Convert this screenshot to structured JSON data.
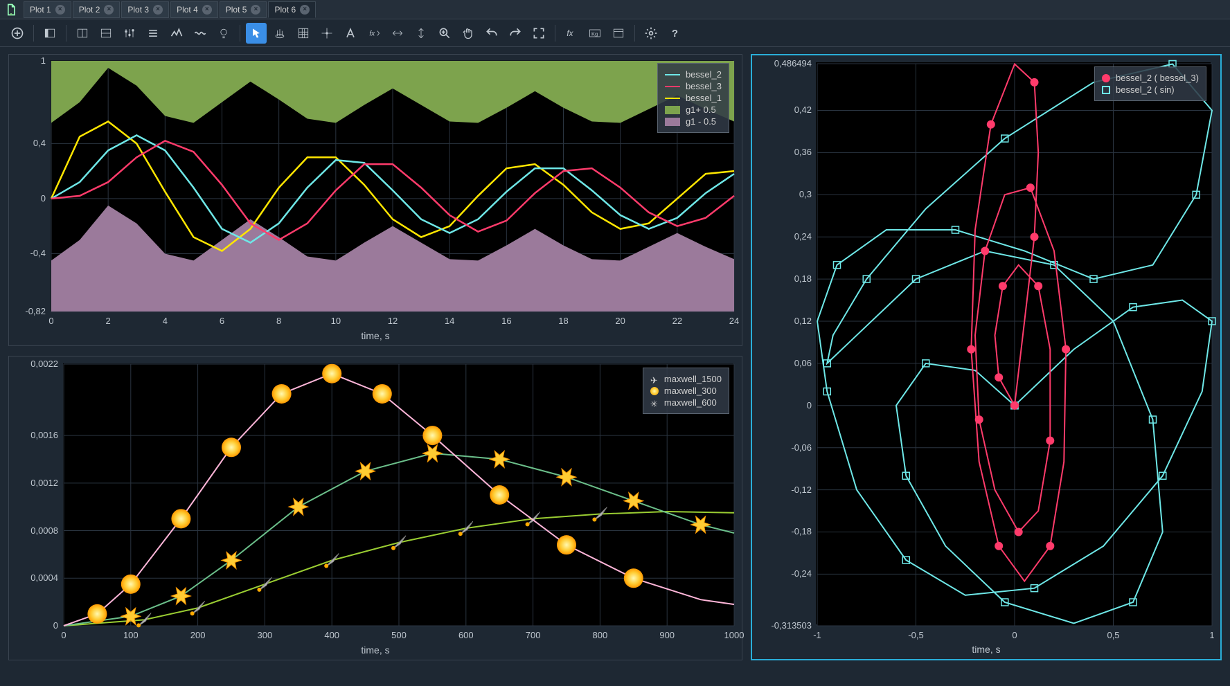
{
  "tabs": [
    {
      "label": "Plot 1",
      "active": false
    },
    {
      "label": "Plot 2",
      "active": false
    },
    {
      "label": "Plot 3",
      "active": false
    },
    {
      "label": "Plot 4",
      "active": false
    },
    {
      "label": "Plot 5",
      "active": false
    },
    {
      "label": "Plot 6",
      "active": true
    }
  ],
  "toolbar": [
    {
      "name": "add",
      "glyph": "plus",
      "selected": false
    },
    {
      "name": "sep"
    },
    {
      "name": "panel-l",
      "glyph": "panelL"
    },
    {
      "name": "sep"
    },
    {
      "name": "layout1",
      "glyph": "layoutA"
    },
    {
      "name": "layout2",
      "glyph": "layoutB"
    },
    {
      "name": "sliders",
      "glyph": "sliders"
    },
    {
      "name": "list",
      "glyph": "list"
    },
    {
      "name": "chart-line",
      "glyph": "zigzag"
    },
    {
      "name": "chart-wave",
      "glyph": "wave"
    },
    {
      "name": "bulb",
      "glyph": "bulb"
    },
    {
      "name": "sep"
    },
    {
      "name": "cursor",
      "glyph": "cursor",
      "selected": true
    },
    {
      "name": "brush",
      "glyph": "brush"
    },
    {
      "name": "grid",
      "glyph": "grid"
    },
    {
      "name": "crosshair",
      "glyph": "crosshair"
    },
    {
      "name": "text",
      "glyph": "textA"
    },
    {
      "name": "fx-caret",
      "glyph": "fxc"
    },
    {
      "name": "arrows-h",
      "glyph": "arrh"
    },
    {
      "name": "arrows-v",
      "glyph": "arrv"
    },
    {
      "name": "zoom",
      "glyph": "zoom"
    },
    {
      "name": "pan",
      "glyph": "hand"
    },
    {
      "name": "undo",
      "glyph": "undo"
    },
    {
      "name": "redo",
      "glyph": "redo"
    },
    {
      "name": "fullscreen",
      "glyph": "fs"
    },
    {
      "name": "sep"
    },
    {
      "name": "fx",
      "glyph": "fx"
    },
    {
      "name": "kg",
      "glyph": "kg"
    },
    {
      "name": "window",
      "glyph": "win"
    },
    {
      "name": "sep"
    },
    {
      "name": "settings",
      "glyph": "gear"
    },
    {
      "name": "help",
      "glyph": "help"
    }
  ],
  "plot1": {
    "xlabel": "time, s",
    "xlim": [
      0,
      24
    ],
    "xticks": [
      0,
      2,
      4,
      6,
      8,
      10,
      12,
      14,
      16,
      18,
      20,
      22,
      24
    ],
    "ylim": [
      -0.82,
      1
    ],
    "yticks": [
      -0.82,
      -0.4,
      0,
      0.4,
      1
    ],
    "ytick_labels": [
      "-0,82",
      "-0,4",
      "0",
      "0,4",
      "1"
    ],
    "grid_color": "#2a3440",
    "bg": "#000000",
    "legend": [
      {
        "label": "bessel_2",
        "color": "#6ee7e7",
        "type": "line"
      },
      {
        "label": "bessel_3",
        "color": "#ff3b6b",
        "type": "line"
      },
      {
        "label": "bessel_1",
        "color": "#ffe600",
        "type": "line"
      },
      {
        "label": "g1+ 0.5",
        "color": "#7da34d",
        "type": "area"
      },
      {
        "label": "g1 - 0.5",
        "color": "#9b7a9b",
        "type": "area"
      }
    ],
    "area_top": {
      "color": "#7da34d",
      "base": 1.0,
      "amp": 0.28,
      "y": [
        0.55,
        0.7,
        0.95,
        0.82,
        0.6,
        0.55,
        0.7,
        0.85,
        0.72,
        0.58,
        0.55,
        0.68,
        0.8,
        0.68,
        0.56,
        0.55,
        0.66,
        0.78,
        0.66,
        0.56,
        0.55,
        0.65,
        0.75,
        0.65,
        0.56
      ]
    },
    "area_bot": {
      "color": "#9b7a9b",
      "base": -0.82,
      "amp": 0.28,
      "y": [
        -0.45,
        -0.3,
        -0.05,
        -0.18,
        -0.4,
        -0.45,
        -0.3,
        -0.15,
        -0.28,
        -0.42,
        -0.45,
        -0.32,
        -0.2,
        -0.32,
        -0.44,
        -0.45,
        -0.34,
        -0.22,
        -0.34,
        -0.44,
        -0.45,
        -0.35,
        -0.25,
        -0.35,
        -0.44
      ]
    },
    "bessel_1": {
      "color": "#ffe600",
      "width": 2.5,
      "y": [
        0.0,
        0.45,
        0.56,
        0.4,
        0.05,
        -0.28,
        -0.38,
        -0.22,
        0.08,
        0.3,
        0.3,
        0.1,
        -0.15,
        -0.28,
        -0.2,
        0.02,
        0.22,
        0.25,
        0.1,
        -0.1,
        -0.22,
        -0.18,
        0.0,
        0.18,
        0.2
      ]
    },
    "bessel_2": {
      "color": "#6ee7e7",
      "width": 2.5,
      "y": [
        0.0,
        0.12,
        0.35,
        0.46,
        0.35,
        0.08,
        -0.22,
        -0.32,
        -0.18,
        0.08,
        0.28,
        0.26,
        0.06,
        -0.15,
        -0.25,
        -0.15,
        0.05,
        0.22,
        0.22,
        0.06,
        -0.12,
        -0.22,
        -0.14,
        0.04,
        0.18
      ]
    },
    "bessel_3": {
      "color": "#ff3b6b",
      "width": 2.5,
      "y": [
        0.0,
        0.02,
        0.12,
        0.3,
        0.42,
        0.34,
        0.1,
        -0.18,
        -0.3,
        -0.18,
        0.06,
        0.25,
        0.25,
        0.08,
        -0.12,
        -0.24,
        -0.16,
        0.04,
        0.2,
        0.22,
        0.08,
        -0.1,
        -0.2,
        -0.14,
        0.02
      ]
    }
  },
  "plot2": {
    "xlabel": "time, s",
    "xlim": [
      0,
      1000
    ],
    "xticks": [
      0,
      100,
      200,
      300,
      400,
      500,
      600,
      700,
      800,
      900,
      1000
    ],
    "ylim": [
      0,
      0.0022
    ],
    "yticks": [
      0,
      0.0004,
      0.0008,
      0.0012,
      0.0016,
      0.0022
    ],
    "ytick_labels": [
      "0",
      "0,0004",
      "0,0008",
      "0,0012",
      "0,0016",
      "0,0022"
    ],
    "grid_color": "#2a3440",
    "bg": "#000000",
    "legend": [
      {
        "label": "maxwell_1500",
        "color": "#9acd32",
        "marker": "rocket"
      },
      {
        "label": "maxwell_300",
        "color": "#ffb6d9",
        "marker": "sun"
      },
      {
        "label": "maxwell_600",
        "color": "#6bbf8a",
        "marker": "star"
      }
    ],
    "maxwell_1500": {
      "color": "#9acd32",
      "x": [
        0,
        120,
        200,
        300,
        400,
        500,
        600,
        700,
        800,
        900,
        1000
      ],
      "y": [
        0,
        5e-05,
        0.00015,
        0.00035,
        0.00055,
        0.0007,
        0.00082,
        0.0009,
        0.00094,
        0.00096,
        0.00095
      ],
      "markers": [
        120,
        200,
        300,
        400,
        500,
        600,
        700,
        800
      ]
    },
    "maxwell_300": {
      "color": "#ffb6d9",
      "x": [
        0,
        50,
        100,
        175,
        250,
        325,
        400,
        475,
        550,
        650,
        750,
        850,
        950,
        1000
      ],
      "y": [
        0,
        0.0001,
        0.00035,
        0.0009,
        0.0015,
        0.00195,
        0.00212,
        0.00195,
        0.0016,
        0.0011,
        0.00068,
        0.0004,
        0.00022,
        0.00018
      ],
      "markers": [
        50,
        100,
        175,
        250,
        325,
        400,
        475,
        550,
        650,
        750,
        850
      ]
    },
    "maxwell_600": {
      "color": "#6bbf8a",
      "x": [
        0,
        100,
        175,
        250,
        350,
        450,
        550,
        650,
        750,
        850,
        950,
        1000
      ],
      "y": [
        0,
        8e-05,
        0.00025,
        0.00055,
        0.001,
        0.0013,
        0.00145,
        0.0014,
        0.00125,
        0.00105,
        0.00085,
        0.00078
      ],
      "markers": [
        100,
        175,
        250,
        350,
        450,
        550,
        650,
        750,
        850,
        950
      ]
    }
  },
  "plot3": {
    "xlabel": "time, s",
    "xlim": [
      -1,
      1
    ],
    "xticks": [
      -1,
      -0.5,
      0,
      0.5,
      1
    ],
    "xtick_labels": [
      "-1",
      "-0,5",
      "0",
      "0,5",
      "1"
    ],
    "ylim": [
      -0.313503,
      0.486494
    ],
    "yticks": [
      -0.313503,
      -0.24,
      -0.18,
      -0.12,
      -0.06,
      0,
      0.06,
      0.12,
      0.18,
      0.24,
      0.3,
      0.36,
      0.42,
      0.486494
    ],
    "ytick_labels": [
      "-0,313503",
      "-0,24",
      "-0,18",
      "-0,12",
      "-0,06",
      "0",
      "0,06",
      "0,12",
      "0,18",
      "0,24",
      "0,3",
      "0,36",
      "0,42",
      "0,486494"
    ],
    "grid_color": "#2a3440",
    "bg": "#000000",
    "legend": [
      {
        "label": "bessel_2 ( bessel_3)",
        "color": "#ff3b6b",
        "marker": "circle"
      },
      {
        "label": "bessel_2 ( sin)",
        "color": "#6ee7e7",
        "marker": "square"
      }
    ],
    "series_red": {
      "color": "#ff3b6b",
      "pts": [
        [
          0,
          0
        ],
        [
          0.05,
          0.12
        ],
        [
          0.1,
          0.24
        ],
        [
          0.12,
          0.36
        ],
        [
          0.1,
          0.46
        ],
        [
          0.0,
          0.486
        ],
        [
          -0.12,
          0.4
        ],
        [
          -0.2,
          0.25
        ],
        [
          -0.22,
          0.08
        ],
        [
          -0.18,
          -0.08
        ],
        [
          -0.08,
          -0.2
        ],
        [
          0.05,
          -0.25
        ],
        [
          0.18,
          -0.2
        ],
        [
          0.25,
          -0.08
        ],
        [
          0.26,
          0.08
        ],
        [
          0.2,
          0.22
        ],
        [
          0.08,
          0.31
        ],
        [
          -0.05,
          0.3
        ],
        [
          -0.15,
          0.22
        ],
        [
          -0.2,
          0.1
        ],
        [
          -0.18,
          -0.02
        ],
        [
          -0.1,
          -0.12
        ],
        [
          0.02,
          -0.18
        ],
        [
          0.12,
          -0.15
        ],
        [
          0.18,
          -0.05
        ],
        [
          0.18,
          0.08
        ],
        [
          0.12,
          0.17
        ],
        [
          0.02,
          0.2
        ],
        [
          -0.06,
          0.17
        ],
        [
          -0.1,
          0.1
        ],
        [
          -0.08,
          0.04
        ],
        [
          -0.02,
          0.01
        ],
        [
          0,
          0
        ]
      ]
    },
    "series_cyan": {
      "color": "#6ee7e7",
      "pts": [
        [
          0,
          0
        ],
        [
          0.3,
          0.08
        ],
        [
          0.6,
          0.14
        ],
        [
          0.85,
          0.15
        ],
        [
          1.0,
          0.12
        ],
        [
          0.95,
          0.02
        ],
        [
          0.75,
          -0.1
        ],
        [
          0.45,
          -0.2
        ],
        [
          0.1,
          -0.26
        ],
        [
          -0.25,
          -0.27
        ],
        [
          -0.55,
          -0.22
        ],
        [
          -0.8,
          -0.12
        ],
        [
          -0.95,
          0.02
        ],
        [
          -1.0,
          0.12
        ],
        [
          -0.9,
          0.2
        ],
        [
          -0.65,
          0.25
        ],
        [
          -0.3,
          0.25
        ],
        [
          0.05,
          0.22
        ],
        [
          0.4,
          0.18
        ],
        [
          0.7,
          0.2
        ],
        [
          0.92,
          0.3
        ],
        [
          1.0,
          0.42
        ],
        [
          0.8,
          0.486
        ],
        [
          0.4,
          0.46
        ],
        [
          -0.05,
          0.38
        ],
        [
          -0.45,
          0.28
        ],
        [
          -0.75,
          0.18
        ],
        [
          -0.92,
          0.1
        ],
        [
          -0.95,
          0.06
        ],
        [
          -0.8,
          0.1
        ],
        [
          -0.5,
          0.18
        ],
        [
          -0.15,
          0.22
        ],
        [
          0.2,
          0.2
        ],
        [
          0.5,
          0.12
        ],
        [
          0.7,
          -0.02
        ],
        [
          0.75,
          -0.18
        ],
        [
          0.6,
          -0.28
        ],
        [
          0.3,
          -0.31
        ],
        [
          -0.05,
          -0.28
        ],
        [
          -0.35,
          -0.2
        ],
        [
          -0.55,
          -0.1
        ],
        [
          -0.6,
          0.0
        ],
        [
          -0.45,
          0.06
        ],
        [
          -0.2,
          0.05
        ],
        [
          0,
          0
        ]
      ]
    }
  }
}
